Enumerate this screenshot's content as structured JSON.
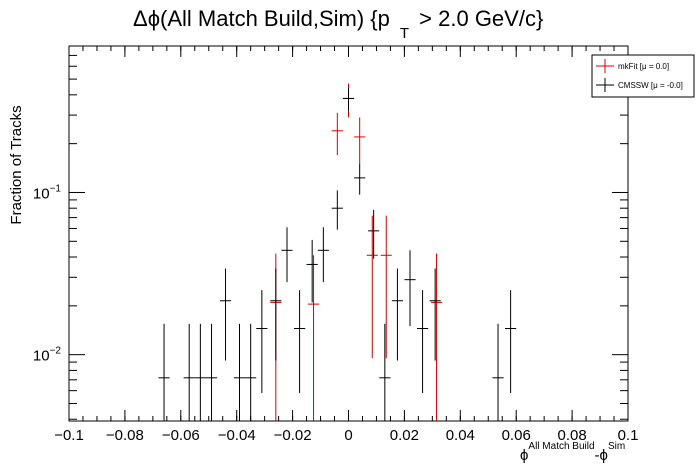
{
  "chart_data": {
    "type": "scatter",
    "title": {
      "prefix": "Δϕ(All Match Build,Sim) {p",
      "subscript": "T",
      "suffix": " > 2.0 GeV/c}"
    },
    "xlabel": {
      "phi": "ϕ",
      "sup1": "All Match Build",
      "mid": "-ϕ",
      "sup2": "Sim"
    },
    "ylabel": "Fraction of Tracks",
    "xlim": [
      -0.1,
      0.1
    ],
    "ylim": [
      0.0039,
      0.8
    ],
    "yscale": "log",
    "grid": false,
    "legend_position": "top-right",
    "xticks": [
      {
        "value": -0.1,
        "label": "−0.1"
      },
      {
        "value": -0.08,
        "label": "−0.08"
      },
      {
        "value": -0.06,
        "label": "−0.06"
      },
      {
        "value": -0.04,
        "label": "−0.04"
      },
      {
        "value": -0.02,
        "label": "−0.02"
      },
      {
        "value": 0,
        "label": "0"
      },
      {
        "value": 0.02,
        "label": "0.02"
      },
      {
        "value": 0.04,
        "label": "0.04"
      },
      {
        "value": 0.06,
        "label": "0.06"
      },
      {
        "value": 0.08,
        "label": "0.08"
      },
      {
        "value": 0.1,
        "label": "0.1"
      }
    ],
    "yticks": [
      {
        "value": 0.01,
        "base": "10",
        "exp": "−2"
      },
      {
        "value": 0.1,
        "base": "10",
        "exp": "−1"
      }
    ],
    "bin_width": 0.004,
    "series": [
      {
        "name": "mkFit  [μ =  0.0]",
        "color": "#d40000",
        "points": [
          {
            "x": -0.026,
            "y": 0.021,
            "lo": 0.0039,
            "hi": 0.042
          },
          {
            "x": -0.0125,
            "y": 0.0205,
            "lo": 0.0039,
            "hi": 0.041
          },
          {
            "x": -0.004,
            "y": 0.24,
            "lo": 0.17,
            "hi": 0.31
          },
          {
            "x": 0,
            "y": 0.38,
            "lo": 0.29,
            "hi": 0.47
          },
          {
            "x": 0.004,
            "y": 0.22,
            "lo": 0.15,
            "hi": 0.29
          },
          {
            "x": 0.0085,
            "y": 0.041,
            "lo": 0.0095,
            "hi": 0.072
          },
          {
            "x": 0.0135,
            "y": 0.041,
            "lo": 0.0095,
            "hi": 0.072
          },
          {
            "x": 0.0315,
            "y": 0.021,
            "lo": 0.0039,
            "hi": 0.042
          }
        ]
      },
      {
        "name": "CMSSW  [μ = -0.0]",
        "color": "#000000",
        "points": [
          {
            "x": -0.066,
            "y": 0.0072,
            "lo": 0.0039,
            "hi": 0.0155
          },
          {
            "x": -0.057,
            "y": 0.0072,
            "lo": 0.0039,
            "hi": 0.0155
          },
          {
            "x": -0.053,
            "y": 0.0072,
            "lo": 0.0039,
            "hi": 0.0155
          },
          {
            "x": -0.049,
            "y": 0.0072,
            "lo": 0.0039,
            "hi": 0.0155
          },
          {
            "x": -0.044,
            "y": 0.0215,
            "lo": 0.0092,
            "hi": 0.034
          },
          {
            "x": -0.039,
            "y": 0.0072,
            "lo": 0.0039,
            "hi": 0.0155
          },
          {
            "x": -0.035,
            "y": 0.0072,
            "lo": 0.0039,
            "hi": 0.0155
          },
          {
            "x": -0.031,
            "y": 0.0145,
            "lo": 0.0058,
            "hi": 0.025
          },
          {
            "x": -0.026,
            "y": 0.0215,
            "lo": 0.0092,
            "hi": 0.034
          },
          {
            "x": -0.022,
            "y": 0.044,
            "lo": 0.028,
            "hi": 0.061
          },
          {
            "x": -0.0175,
            "y": 0.0145,
            "lo": 0.0058,
            "hi": 0.025
          },
          {
            "x": -0.013,
            "y": 0.036,
            "lo": 0.021,
            "hi": 0.051
          },
          {
            "x": -0.009,
            "y": 0.044,
            "lo": 0.028,
            "hi": 0.061
          },
          {
            "x": -0.004,
            "y": 0.08,
            "lo": 0.059,
            "hi": 0.103
          },
          {
            "x": 0,
            "y": 0.38,
            "lo": 0.32,
            "hi": 0.44
          },
          {
            "x": 0.004,
            "y": 0.123,
            "lo": 0.097,
            "hi": 0.15
          },
          {
            "x": 0.009,
            "y": 0.058,
            "lo": 0.039,
            "hi": 0.078
          },
          {
            "x": 0.013,
            "y": 0.0072,
            "lo": 0.0039,
            "hi": 0.0155
          },
          {
            "x": 0.0175,
            "y": 0.0215,
            "lo": 0.0092,
            "hi": 0.034
          },
          {
            "x": 0.022,
            "y": 0.029,
            "lo": 0.015,
            "hi": 0.044
          },
          {
            "x": 0.0265,
            "y": 0.0145,
            "lo": 0.0058,
            "hi": 0.025
          },
          {
            "x": 0.031,
            "y": 0.0215,
            "lo": 0.0092,
            "hi": 0.034
          },
          {
            "x": 0.0535,
            "y": 0.0072,
            "lo": 0.0039,
            "hi": 0.0155
          },
          {
            "x": 0.058,
            "y": 0.0145,
            "lo": 0.0058,
            "hi": 0.025
          }
        ]
      }
    ]
  }
}
